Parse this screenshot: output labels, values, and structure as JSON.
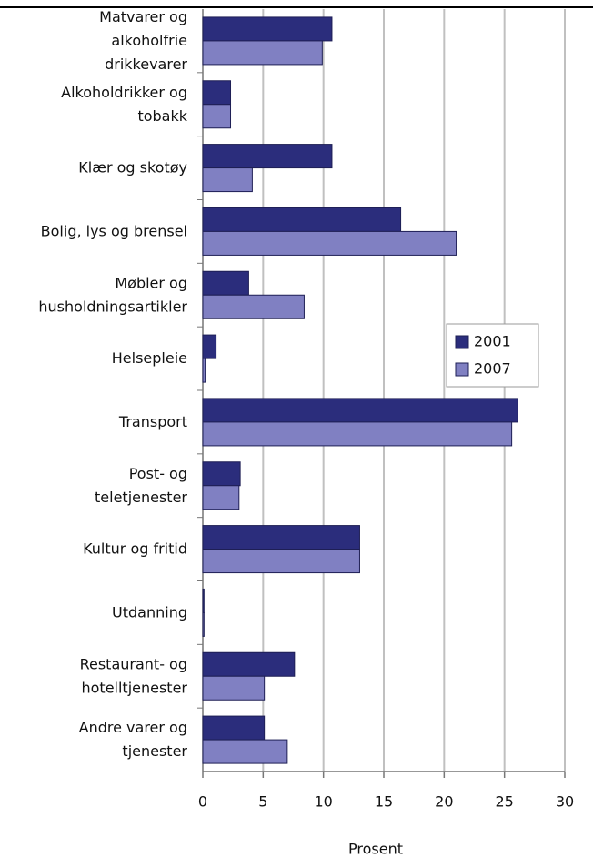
{
  "chart_data": {
    "type": "barh",
    "x_label": "Prosent",
    "categories": [
      "Matvarer og\nalkoholfrie\ndrikkevarer",
      "Alkoholdrikker og\ntobakk",
      "Klær og skotøy",
      "Bolig, lys og brensel",
      "Møbler og\nhusholdningsartikler",
      "Helsepleie",
      "Transport",
      "Post- og\nteletjenester",
      "Kultur og fritid",
      "Utdanning",
      "Restaurant- og\nhotelltjenester",
      "Andre varer og\ntjenester"
    ],
    "series": [
      {
        "name": "2001",
        "color": "#2b2d7c",
        "values": [
          10.7,
          2.3,
          10.7,
          16.4,
          3.8,
          1.1,
          26.1,
          3.1,
          13.0,
          0.1,
          7.6,
          5.1
        ]
      },
      {
        "name": "2007",
        "color": "#8080c2",
        "values": [
          9.9,
          2.3,
          4.1,
          21.0,
          8.4,
          0.2,
          25.6,
          3.0,
          13.0,
          0.1,
          5.1,
          7.0
        ]
      }
    ],
    "xlim": [
      0,
      30
    ],
    "xticks": [
      0,
      5,
      10,
      15,
      20,
      25,
      30
    ],
    "grid": true,
    "legend": "right"
  }
}
